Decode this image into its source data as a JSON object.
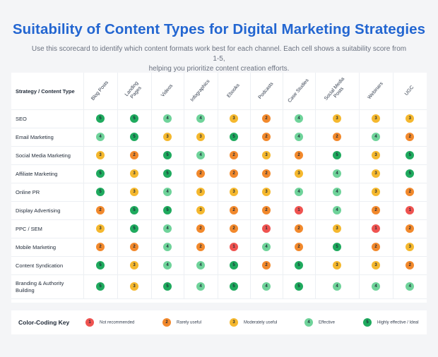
{
  "title": "Suitability of Content Types for Digital Marketing Strategies",
  "subtitle_line1": "Use this scorecard to identify which content formats work best for each channel. Each cell shows a suitability score from 1-5,",
  "subtitle_line2": "helping you prioritize content creation efforts.",
  "table": {
    "corner_label": "Strategy / Content Type",
    "columns": [
      "Blog Posts",
      "Landing Pages",
      "Videos",
      "Infographics",
      "Ebooks",
      "Podcasts",
      "Case Studies",
      "Social Media Posts",
      "Webinars",
      "UGC"
    ],
    "rows": [
      {
        "label": "SEO",
        "scores": [
          "5",
          "5",
          "4",
          "4",
          "3",
          "2",
          "4",
          "3",
          "3",
          "3"
        ]
      },
      {
        "label": "Email Marketing",
        "scores": [
          "4",
          "5",
          "3",
          "3",
          "5",
          "2",
          "4",
          "2",
          "4",
          "2"
        ]
      },
      {
        "label": "Social Media Marketing",
        "scores": [
          "3",
          "2",
          "5",
          "4",
          "2",
          "3",
          "2",
          "5",
          "3",
          "5"
        ]
      },
      {
        "label": "Affiliate Marketing",
        "scores": [
          "5",
          "3",
          "5",
          "2",
          "2",
          "2",
          "3",
          "4",
          "3",
          "5"
        ]
      },
      {
        "label": "Online PR",
        "scores": [
          "5",
          "3",
          "4",
          "3",
          "3",
          "3",
          "4",
          "4",
          "3",
          "2"
        ]
      },
      {
        "label": "Display Advertising",
        "scores": [
          "2",
          "5",
          "5",
          "3",
          "2",
          "2",
          "1",
          "4",
          "2",
          "1"
        ]
      },
      {
        "label": "PPC / SEM",
        "scores": [
          "3",
          "5",
          "4",
          "2",
          "2",
          "1",
          "2",
          "3",
          "1",
          "2"
        ]
      },
      {
        "label": "Mobile Marketing",
        "scores": [
          "2",
          "2",
          "4",
          "2",
          "1",
          "4",
          "2",
          "5",
          "2",
          "3"
        ]
      },
      {
        "label": "Content Syndication",
        "scores": [
          "5",
          "3",
          "4",
          "4",
          "5",
          "2",
          "5",
          "3",
          "3",
          "2"
        ]
      },
      {
        "label": "Branding & Authority Building",
        "scores": [
          "5",
          "3",
          "5",
          "4",
          "5",
          "4",
          "5",
          "4",
          "4",
          "4"
        ]
      }
    ]
  },
  "colors": {
    "1": "#ef5350",
    "2": "#f2892c",
    "3": "#f5b82e",
    "4": "#6fd39a",
    "5": "#1faa5e"
  },
  "key": {
    "title": "Color-Coding Key",
    "items": [
      {
        "score": "1",
        "label": "Not recommended"
      },
      {
        "score": "2",
        "label": "Rarely useful"
      },
      {
        "score": "3",
        "label": "Moderately useful"
      },
      {
        "score": "4",
        "label": "Effective"
      },
      {
        "score": "5",
        "label": "Highly effective / Ideal"
      }
    ]
  }
}
